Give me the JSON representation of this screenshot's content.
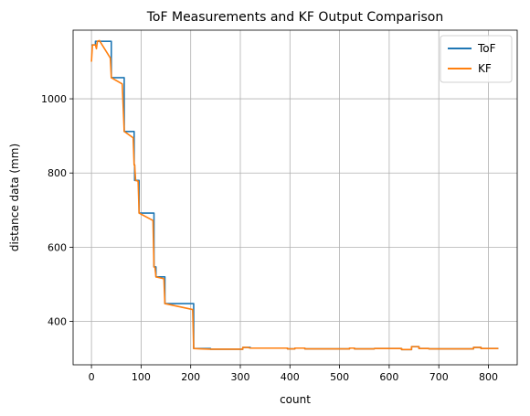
{
  "chart_data": {
    "type": "line",
    "title": "ToF Measurements and KF Output Comparison",
    "xlabel": "count",
    "ylabel": "distance data (mm)",
    "xlim": [
      -37,
      858
    ],
    "ylim": [
      283,
      1185
    ],
    "xticks": [
      0,
      100,
      200,
      300,
      400,
      500,
      600,
      700,
      800
    ],
    "yticks": [
      400,
      600,
      800,
      1000
    ],
    "grid": true,
    "legend": "top-right",
    "series": [
      {
        "name": "ToF",
        "color": "#1f77b4",
        "points": [
          [
            0,
            1145
          ],
          [
            8,
            1145
          ],
          [
            8,
            1155
          ],
          [
            40,
            1155
          ],
          [
            40,
            1057
          ],
          [
            66,
            1057
          ],
          [
            66,
            912
          ],
          [
            86,
            912
          ],
          [
            86,
            822
          ],
          [
            87,
            822
          ],
          [
            87,
            780
          ],
          [
            96,
            780
          ],
          [
            96,
            692
          ],
          [
            126,
            692
          ],
          [
            126,
            547
          ],
          [
            130,
            547
          ],
          [
            130,
            520
          ],
          [
            148,
            520
          ],
          [
            148,
            448
          ],
          [
            206,
            448
          ],
          [
            206,
            327
          ],
          [
            240,
            327
          ],
          [
            240,
            325
          ],
          [
            305,
            325
          ],
          [
            305,
            330
          ],
          [
            320,
            330
          ],
          [
            320,
            328
          ],
          [
            395,
            328
          ],
          [
            395,
            326
          ],
          [
            410,
            326
          ],
          [
            410,
            328
          ],
          [
            430,
            328
          ],
          [
            430,
            326
          ],
          [
            520,
            326
          ],
          [
            520,
            328
          ],
          [
            530,
            328
          ],
          [
            530,
            326
          ],
          [
            570,
            326
          ],
          [
            570,
            327
          ],
          [
            625,
            327
          ],
          [
            625,
            324
          ],
          [
            645,
            324
          ],
          [
            645,
            332
          ],
          [
            660,
            332
          ],
          [
            660,
            327
          ],
          [
            680,
            327
          ],
          [
            680,
            326
          ],
          [
            770,
            326
          ],
          [
            770,
            330
          ],
          [
            785,
            330
          ],
          [
            785,
            327
          ],
          [
            820,
            327
          ]
        ]
      },
      {
        "name": "KF",
        "color": "#ff7f0e",
        "points": [
          [
            0,
            1100
          ],
          [
            2,
            1145
          ],
          [
            8,
            1145
          ],
          [
            10,
            1135
          ],
          [
            12,
            1155
          ],
          [
            16,
            1157
          ],
          [
            38,
            1110
          ],
          [
            40,
            1057
          ],
          [
            62,
            1040
          ],
          [
            66,
            912
          ],
          [
            84,
            895
          ],
          [
            86,
            822
          ],
          [
            87,
            822
          ],
          [
            89,
            780
          ],
          [
            94,
            778
          ],
          [
            96,
            692
          ],
          [
            124,
            672
          ],
          [
            126,
            547
          ],
          [
            128,
            545
          ],
          [
            130,
            520
          ],
          [
            146,
            515
          ],
          [
            148,
            448
          ],
          [
            204,
            432
          ],
          [
            206,
            327
          ],
          [
            220,
            326
          ],
          [
            240,
            325
          ],
          [
            305,
            325
          ],
          [
            305,
            330
          ],
          [
            315,
            330
          ],
          [
            320,
            328
          ],
          [
            395,
            328
          ],
          [
            395,
            326
          ],
          [
            410,
            326
          ],
          [
            410,
            328
          ],
          [
            430,
            328
          ],
          [
            430,
            326
          ],
          [
            520,
            326
          ],
          [
            520,
            328
          ],
          [
            530,
            328
          ],
          [
            530,
            326
          ],
          [
            570,
            326
          ],
          [
            570,
            327
          ],
          [
            625,
            327
          ],
          [
            625,
            324
          ],
          [
            645,
            324
          ],
          [
            645,
            332
          ],
          [
            660,
            332
          ],
          [
            660,
            327
          ],
          [
            680,
            327
          ],
          [
            680,
            326
          ],
          [
            770,
            326
          ],
          [
            770,
            330
          ],
          [
            785,
            330
          ],
          [
            785,
            327
          ],
          [
            820,
            327
          ]
        ]
      }
    ]
  }
}
